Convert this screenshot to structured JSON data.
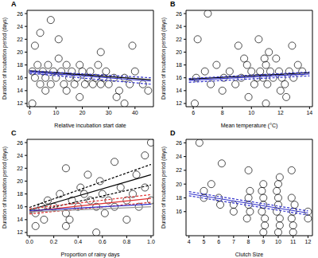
{
  "chart_data": [
    {
      "type": "scatter",
      "title": "A",
      "x_label": "Relative incubation start date",
      "y_label": "Duration of incubation period (days)",
      "xlim": [
        -1,
        47
      ],
      "ylim": [
        11.5,
        26.5
      ],
      "xticks": [
        0,
        10,
        20,
        30,
        40
      ],
      "yticks": [
        12,
        14,
        16,
        18,
        20,
        22,
        24,
        26
      ],
      "series": [
        {
          "type": "scatter",
          "color": "#000000",
          "marker": "circle",
          "x": [
            1,
            2,
            3,
            4,
            5,
            6,
            7,
            8,
            9,
            10,
            11,
            12,
            13,
            14,
            15,
            16,
            17,
            18,
            19,
            20,
            21,
            22,
            23,
            24,
            25,
            26,
            27,
            28,
            29,
            30,
            32,
            34,
            36,
            38,
            40,
            43,
            45,
            8,
            4,
            11,
            2,
            27,
            39,
            1,
            33,
            36,
            19,
            6,
            14
          ],
          "values": [
            17,
            16,
            18,
            15,
            17,
            16,
            18,
            15,
            17,
            16,
            19,
            17,
            15,
            18,
            16,
            17,
            15,
            16,
            18,
            17,
            15,
            16,
            17,
            15,
            16,
            18,
            15,
            16,
            17,
            15,
            16,
            14,
            16,
            15,
            17,
            15,
            14,
            25,
            23,
            22,
            21,
            20,
            21,
            12,
            13,
            12,
            13,
            14,
            14
          ]
        },
        {
          "type": "line",
          "color": "#000000",
          "line_style": "solid",
          "x": [
            0,
            46
          ],
          "values": [
            17.1,
            15.7
          ]
        },
        {
          "type": "line",
          "color": "#3333cc",
          "line_style": "solid",
          "x": [
            0,
            46
          ],
          "values": [
            16.9,
            15.5
          ]
        },
        {
          "type": "line",
          "color": "#3333cc",
          "line_style": "dashed",
          "x": [
            0,
            46
          ],
          "values": [
            17.1,
            16.0
          ]
        },
        {
          "type": "line",
          "color": "#3333cc",
          "line_style": "dashed",
          "x": [
            0,
            46
          ],
          "values": [
            16.7,
            15.0
          ]
        }
      ]
    },
    {
      "type": "scatter",
      "title": "B",
      "x_label": "Mean temperature (°C)",
      "y_label": "Duration of incubation period (days)",
      "xlim": [
        5.5,
        14.2
      ],
      "ylim": [
        11.5,
        26.5
      ],
      "xticks": [
        6,
        8,
        10,
        12,
        14
      ],
      "yticks": [
        12,
        14,
        16,
        18,
        20,
        22,
        24,
        26
      ],
      "series": [
        {
          "type": "scatter",
          "color": "#000000",
          "marker": "circle",
          "x": [
            6.2,
            6.8,
            7.2,
            7.6,
            8.1,
            8.5,
            8.9,
            9.3,
            9.7,
            10.0,
            10.2,
            10.4,
            10.6,
            10.8,
            11.0,
            11.1,
            11.3,
            11.5,
            11.7,
            11.9,
            12.1,
            12.3,
            12.6,
            12.9,
            13.2,
            13.5,
            9.5,
            10.9,
            8.0,
            12.0,
            7.0,
            6.3,
            10.5,
            9.1,
            12.8,
            11.2,
            6.1,
            11.0,
            9.8,
            12.4
          ],
          "values": [
            16,
            17,
            15,
            18,
            16,
            17,
            15,
            16,
            18,
            17,
            15,
            16,
            17,
            16,
            18,
            15,
            17,
            16,
            19,
            17,
            16,
            15,
            17,
            16,
            18,
            17,
            19,
            19,
            14,
            14,
            26,
            22,
            22,
            21,
            21,
            20,
            12,
            12,
            13,
            13
          ]
        },
        {
          "type": "line",
          "color": "#000000",
          "line_style": "solid",
          "x": [
            5.7,
            14
          ],
          "values": [
            15.8,
            16.8
          ]
        },
        {
          "type": "line",
          "color": "#3333cc",
          "line_style": "solid",
          "x": [
            5.7,
            14
          ],
          "values": [
            15.6,
            16.6
          ]
        },
        {
          "type": "line",
          "color": "#3333cc",
          "line_style": "dashed",
          "x": [
            5.7,
            14
          ],
          "values": [
            15.9,
            16.9
          ]
        },
        {
          "type": "line",
          "color": "#3333cc",
          "line_style": "dashed",
          "x": [
            5.7,
            14
          ],
          "values": [
            15.3,
            16.3
          ]
        }
      ]
    },
    {
      "type": "scatter",
      "title": "C",
      "x_label": "Proportion of rainy days",
      "y_label": "Duration of incubation period (days)",
      "xlim": [
        -0.02,
        1.02
      ],
      "ylim": [
        11.5,
        26.5
      ],
      "xticks": [
        {
          "value": 0,
          "label": "0.0"
        },
        0.2,
        0.4,
        0.6,
        0.8,
        {
          "value": 1,
          "label": "1.0"
        }
      ],
      "yticks": [
        12,
        14,
        16,
        18,
        20,
        22,
        24,
        26
      ],
      "series": [
        {
          "type": "scatter",
          "color": "#000000",
          "marker": "circle",
          "x": [
            0.05,
            0.1,
            0.15,
            0.2,
            0.25,
            0.3,
            0.35,
            0.4,
            0.45,
            0.5,
            0.55,
            0.6,
            0.65,
            0.7,
            0.75,
            0.8,
            0.85,
            0.9,
            0.95,
            1.0,
            0.42,
            0.58,
            0.33,
            0.62,
            0.8,
            0.12,
            1.0,
            0.95,
            0.7,
            0.3,
            0.48,
            0.88,
            0.3,
            0.05,
            0.55
          ],
          "values": [
            15,
            16,
            17,
            16,
            18,
            15,
            17,
            16,
            18,
            17,
            16,
            18,
            17,
            16,
            19,
            17,
            18,
            16,
            19,
            17,
            19,
            20,
            14,
            15,
            14,
            14,
            26,
            24,
            23,
            22,
            21,
            21,
            13,
            13,
            12
          ]
        },
        {
          "type": "line",
          "color": "#000000",
          "line_style": "solid",
          "x": [
            0,
            1
          ],
          "values": [
            15.5,
            21.0
          ]
        },
        {
          "type": "line",
          "color": "#000000",
          "line_style": "dashed",
          "x": [
            0,
            1
          ],
          "values": [
            15.9,
            22.6
          ]
        },
        {
          "type": "line",
          "color": "#000000",
          "line_style": "dashed",
          "x": [
            0,
            1
          ],
          "values": [
            15.1,
            19.4
          ]
        },
        {
          "type": "line",
          "color": "#e03030",
          "line_style": "solid",
          "x": [
            0,
            1
          ],
          "values": [
            15.3,
            17.3
          ]
        },
        {
          "type": "line",
          "color": "#e03030",
          "line_style": "dashed",
          "x": [
            0,
            1
          ],
          "values": [
            15.7,
            17.9
          ]
        },
        {
          "type": "line",
          "color": "#e03030",
          "line_style": "dashed",
          "x": [
            0,
            1
          ],
          "values": [
            14.9,
            16.7
          ]
        },
        {
          "type": "line",
          "color": "#3333cc",
          "line_style": "solid",
          "x": [
            0,
            1
          ],
          "values": [
            15.4,
            16.4
          ]
        },
        {
          "type": "line",
          "color": "#999999",
          "line_style": "solid",
          "x": [
            0,
            1
          ],
          "values": [
            15.2,
            16.0
          ]
        }
      ]
    },
    {
      "type": "scatter",
      "title": "D",
      "x_label": "Clutch Size",
      "y_label": "Duration of incubation period (days)",
      "xlim": [
        3.8,
        12.3
      ],
      "ylim": [
        12.5,
        26.5
      ],
      "xticks": [
        4,
        5,
        6,
        7,
        8,
        9,
        10,
        11,
        12
      ],
      "yticks": [
        16,
        18,
        20,
        22,
        24,
        26
      ],
      "series": [
        {
          "type": "scatter",
          "color": "#000000",
          "marker": "circle",
          "x": [
            8.0,
            8.1,
            7.9,
            8.0,
            8.1,
            9.0,
            8.9,
            9.1,
            9.0,
            9.1,
            8.9,
            9.0,
            10.0,
            9.9,
            10.1,
            10.0,
            10.1,
            9.9,
            10.0,
            10.1,
            11.0,
            10.9,
            11.1,
            11.0,
            10.9,
            12.0,
            12.0,
            7.0,
            7.0,
            6.0,
            6.1,
            5.0,
            5.0,
            4.7,
            6.2,
            8.0,
            10.9,
            5.5,
            9.0,
            10.0,
            11.0
          ],
          "values": [
            17,
            16,
            15,
            18,
            19,
            17,
            16,
            15,
            18,
            14,
            19,
            20,
            17,
            16,
            15,
            18,
            14,
            19,
            20,
            21,
            16,
            15,
            17,
            14,
            18,
            16,
            15,
            17,
            16,
            18,
            17,
            18,
            19,
            26,
            23,
            22,
            22,
            20,
            13,
            13,
            13
          ]
        },
        {
          "type": "line",
          "color": "#3333cc",
          "line_style": "solid",
          "x": [
            4,
            12
          ],
          "values": [
            18.6,
            15.8
          ]
        },
        {
          "type": "line",
          "color": "#3333cc",
          "line_style": "dashed",
          "x": [
            4,
            12
          ],
          "values": [
            18.9,
            16.1
          ]
        },
        {
          "type": "line",
          "color": "#3333cc",
          "line_style": "dashed",
          "x": [
            4,
            12
          ],
          "values": [
            18.3,
            15.5
          ]
        }
      ]
    }
  ]
}
